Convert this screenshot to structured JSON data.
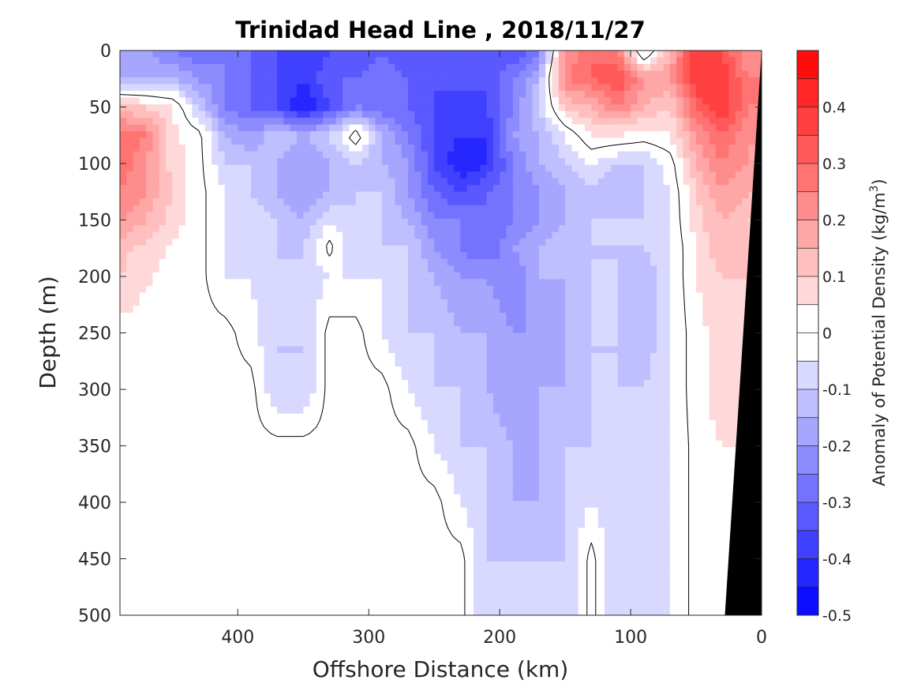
{
  "chart_data": {
    "type": "heatmap",
    "title": "Trinidad Head Line , 2018/11/27",
    "xlabel": "Offshore Distance (km)",
    "ylabel": "Depth (m)",
    "colorbar_label_main": "Anomaly of Potential Density (kg/m",
    "colorbar_label_sup": "3",
    "colorbar_label_end": ")",
    "xlim": [
      490,
      0
    ],
    "ylim": [
      500,
      0
    ],
    "x_reversed": true,
    "y_reversed": true,
    "xticks": [
      400,
      300,
      200,
      100,
      0
    ],
    "xtick_labels": [
      "400",
      "300",
      "200",
      "100",
      "0"
    ],
    "yticks": [
      0,
      50,
      100,
      150,
      200,
      250,
      300,
      350,
      400,
      450,
      500
    ],
    "ytick_labels": [
      "0",
      "50",
      "100",
      "150",
      "200",
      "250",
      "300",
      "350",
      "400",
      "450",
      "500"
    ],
    "clim": [
      -0.5,
      0.5
    ],
    "colorbar_ticks": [
      0.4,
      0.3,
      0.2,
      0.1,
      0,
      -0.1,
      -0.2,
      -0.3,
      -0.4,
      -0.5
    ],
    "colorbar_tick_labels": [
      "0.4",
      "0.3",
      "0.2",
      "0.1",
      "0",
      "-0.1",
      "-0.2",
      "-0.3",
      "-0.4",
      "-0.5"
    ],
    "colorbar_levels": 20,
    "colormap": {
      "negative": "#0000ff",
      "zero": "#ffffff",
      "positive": "#ff0000"
    },
    "zero_contour": true,
    "bathymetry_color": "#000000",
    "bathymetry": {
      "distance": [
        0,
        0,
        28
      ],
      "depth": [
        0,
        500,
        500
      ]
    },
    "field_x": [
      490,
      470,
      450,
      430,
      410,
      390,
      370,
      350,
      330,
      310,
      290,
      270,
      250,
      230,
      210,
      190,
      170,
      150,
      130,
      110,
      90,
      70,
      50,
      30,
      10
    ],
    "field_y": [
      0,
      25,
      50,
      75,
      100,
      125,
      150,
      175,
      200,
      250,
      300,
      350,
      400,
      450,
      500
    ],
    "field_values": [
      [
        -0.15,
        -0.2,
        -0.25,
        -0.3,
        -0.25,
        -0.3,
        -0.35,
        -0.4,
        -0.35,
        -0.35,
        -0.3,
        -0.35,
        -0.3,
        -0.3,
        -0.3,
        -0.35,
        -0.25,
        0.2,
        0.3,
        0.25,
        -0.1,
        0.15,
        0.4,
        0.35,
        0.2
      ],
      [
        -0.15,
        -0.15,
        -0.15,
        -0.2,
        -0.25,
        -0.3,
        -0.35,
        -0.4,
        -0.3,
        -0.3,
        -0.25,
        -0.3,
        -0.35,
        -0.3,
        -0.35,
        -0.25,
        -0.15,
        0.25,
        0.3,
        0.35,
        0.2,
        0.2,
        0.4,
        0.4,
        0.25
      ],
      [
        0.12,
        0.1,
        0.06,
        -0.1,
        -0.25,
        -0.3,
        -0.35,
        -0.45,
        -0.35,
        -0.25,
        -0.3,
        -0.3,
        -0.35,
        -0.4,
        -0.35,
        -0.25,
        -0.1,
        0.1,
        0.15,
        0.25,
        0.15,
        0.1,
        0.3,
        0.4,
        0.25
      ],
      [
        0.3,
        0.25,
        0.06,
        0.02,
        -0.15,
        -0.2,
        -0.1,
        -0.15,
        -0.1,
        0.05,
        -0.15,
        -0.25,
        -0.35,
        -0.4,
        -0.4,
        -0.2,
        -0.15,
        -0.05,
        0.05,
        0.05,
        0.03,
        0.05,
        0.2,
        0.3,
        0.2
      ],
      [
        0.3,
        0.2,
        0.08,
        0.02,
        -0.1,
        -0.1,
        -0.15,
        -0.2,
        -0.15,
        -0.1,
        -0.15,
        -0.2,
        -0.35,
        -0.45,
        -0.4,
        -0.25,
        -0.15,
        -0.1,
        -0.05,
        -0.1,
        -0.1,
        -0.03,
        0.15,
        0.25,
        0.2
      ],
      [
        0.25,
        0.2,
        0.1,
        0.02,
        -0.05,
        -0.1,
        -0.15,
        -0.2,
        -0.15,
        -0.1,
        -0.1,
        -0.2,
        -0.3,
        -0.35,
        -0.3,
        -0.25,
        -0.2,
        -0.15,
        -0.1,
        -0.15,
        -0.1,
        -0.05,
        0.1,
        0.2,
        0.15
      ],
      [
        0.2,
        0.15,
        0.08,
        0.02,
        -0.05,
        -0.05,
        -0.1,
        -0.15,
        -0.05,
        -0.1,
        -0.1,
        -0.15,
        -0.25,
        -0.25,
        -0.3,
        -0.25,
        -0.2,
        -0.15,
        -0.1,
        -0.1,
        -0.1,
        -0.05,
        0.08,
        0.15,
        0.1
      ],
      [
        0.12,
        0.08,
        0.04,
        0.02,
        -0.05,
        -0.1,
        -0.1,
        -0.1,
        0.02,
        -0.1,
        -0.1,
        -0.1,
        -0.2,
        -0.25,
        -0.3,
        -0.2,
        -0.15,
        -0.1,
        -0.1,
        -0.1,
        -0.1,
        -0.05,
        0.05,
        0.15,
        0.1
      ],
      [
        0.1,
        0.06,
        0.03,
        0.02,
        -0.05,
        -0.05,
        -0.1,
        -0.1,
        -0.05,
        -0.05,
        -0.05,
        -0.1,
        -0.15,
        -0.2,
        -0.2,
        -0.25,
        -0.15,
        -0.15,
        -0.1,
        -0.1,
        -0.15,
        -0.05,
        0.05,
        0.1,
        0.1
      ],
      [
        0.03,
        0.02,
        0.02,
        0.02,
        0.02,
        -0.03,
        -0.1,
        -0.1,
        0.02,
        0.02,
        -0.05,
        -0.1,
        -0.1,
        -0.15,
        -0.15,
        -0.2,
        -0.2,
        -0.15,
        -0.1,
        -0.1,
        -0.15,
        -0.05,
        0.03,
        0.08,
        0.08
      ],
      [
        0.02,
        0.02,
        0.02,
        0.02,
        0.02,
        0.02,
        -0.1,
        -0.1,
        0.02,
        0.02,
        0.02,
        -0.05,
        -0.1,
        -0.1,
        -0.15,
        -0.2,
        -0.15,
        -0.15,
        -0.1,
        -0.1,
        -0.1,
        -0.05,
        0.03,
        0.08,
        0.08
      ],
      [
        0.02,
        0.02,
        0.02,
        0.02,
        0.02,
        0.02,
        0.02,
        0.02,
        0.02,
        0.02,
        0.02,
        0.02,
        -0.05,
        -0.1,
        -0.1,
        -0.15,
        -0.15,
        -0.1,
        -0.1,
        -0.1,
        -0.1,
        -0.05,
        0.02,
        0.05,
        0.05
      ],
      [
        0.02,
        0.02,
        0.02,
        0.02,
        0.02,
        0.02,
        0.02,
        0.02,
        0.02,
        0.02,
        0.02,
        0.02,
        0.02,
        -0.05,
        -0.1,
        -0.15,
        -0.15,
        -0.1,
        -0.05,
        -0.1,
        -0.1,
        -0.05,
        0.02,
        0.03,
        0.03
      ],
      [
        0.02,
        0.02,
        0.02,
        0.02,
        0.02,
        0.02,
        0.02,
        0.02,
        0.02,
        0.02,
        0.02,
        0.02,
        0.02,
        0.02,
        -0.1,
        -0.1,
        -0.1,
        -0.1,
        0.02,
        -0.1,
        -0.1,
        -0.05,
        0.02,
        0.02,
        0.02
      ],
      [
        0.02,
        0.02,
        0.02,
        0.02,
        0.02,
        0.02,
        0.02,
        0.02,
        0.02,
        0.02,
        0.02,
        0.02,
        0.02,
        0.02,
        -0.1,
        -0.1,
        -0.1,
        -0.1,
        0.02,
        -0.1,
        -0.1,
        -0.05,
        0.02,
        0.02,
        0.02
      ]
    ]
  }
}
